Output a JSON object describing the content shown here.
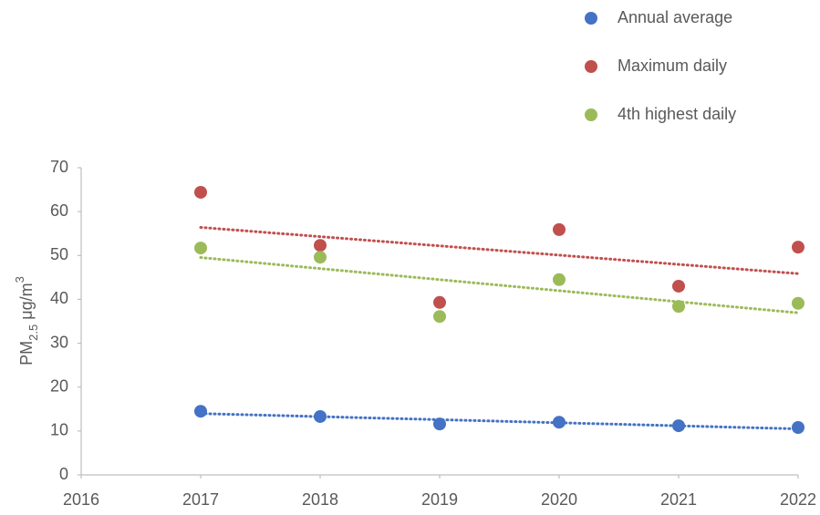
{
  "chart_data": {
    "type": "scatter",
    "ylabel_parts": [
      "PM",
      "2.5",
      " μg/m",
      "3"
    ],
    "x": [
      2017,
      2018,
      2019,
      2020,
      2021,
      2022
    ],
    "series": [
      {
        "name": "Annual average",
        "color": "#4472c4",
        "values": [
          14.5,
          13.3,
          11.6,
          12.0,
          11.2,
          10.8
        ]
      },
      {
        "name": "Maximum daily",
        "color": "#c0504d",
        "values": [
          64.4,
          52.3,
          39.3,
          55.9,
          43.0,
          51.9
        ]
      },
      {
        "name": "4th highest daily",
        "color": "#9bbb59",
        "values": [
          51.7,
          49.6,
          36.1,
          44.5,
          38.4,
          39.1
        ]
      }
    ],
    "xlim": [
      2016,
      2022
    ],
    "xticks": [
      2016,
      2017,
      2018,
      2019,
      2020,
      2021,
      2022
    ],
    "ylim": [
      0,
      70
    ],
    "yticks": [
      0,
      10,
      20,
      30,
      40,
      50,
      60,
      70
    ],
    "trendline": "linear",
    "legend": "top-right",
    "grid": false
  }
}
